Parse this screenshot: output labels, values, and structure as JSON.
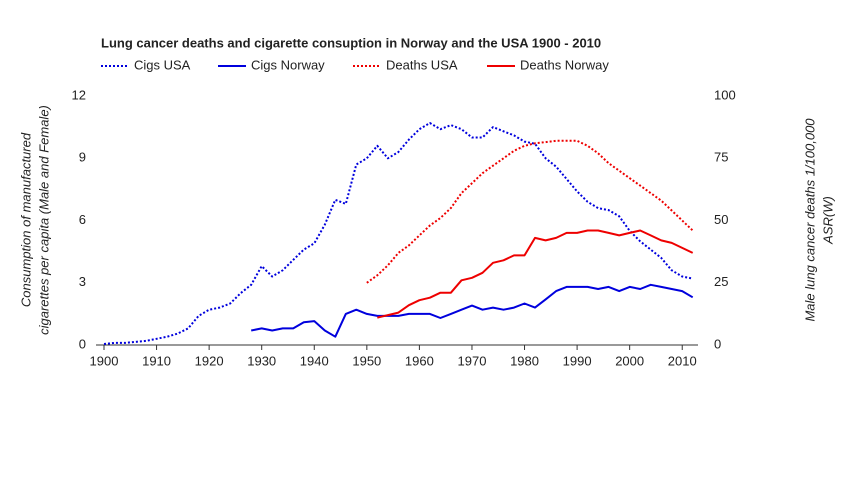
{
  "chart_data": {
    "type": "line",
    "title": "Lung cancer deaths and cigarette consuption in Norway and the USA 1900 - 2010",
    "ylabel": [
      "Consumption of manufactured",
      "cigarettes per capita (Male and Female)"
    ],
    "y2label": [
      "Male lung cancer deaths 1/100,000",
      "ASR(W)"
    ],
    "x": [
      1900,
      1902,
      1904,
      1906,
      1908,
      1910,
      1912,
      1914,
      1916,
      1918,
      1920,
      1922,
      1924,
      1926,
      1928,
      1930,
      1932,
      1934,
      1936,
      1938,
      1940,
      1942,
      1944,
      1946,
      1948,
      1950,
      1952,
      1954,
      1956,
      1958,
      1960,
      1962,
      1964,
      1966,
      1968,
      1970,
      1972,
      1974,
      1976,
      1978,
      1980,
      1982,
      1984,
      1986,
      1988,
      1990,
      1992,
      1994,
      1996,
      1998,
      2000,
      2002,
      2004,
      2006,
      2008,
      2010,
      2012
    ],
    "xlim": [
      1900,
      2013
    ],
    "xticks": [
      1900,
      1910,
      1920,
      1930,
      1940,
      1950,
      1960,
      1970,
      1980,
      1990,
      2000,
      2010
    ],
    "ylim": [
      0,
      12
    ],
    "yticks": [
      0,
      3,
      6,
      9,
      12
    ],
    "y2lim": [
      0,
      100
    ],
    "y2ticks": [
      0,
      25,
      50,
      75,
      100
    ],
    "y_color": "#0000dd",
    "y2_color": "#ee0000",
    "series": [
      {
        "name": "Cigs USA",
        "color": "#0000dd",
        "dotted": true,
        "axis": "y",
        "values": [
          0.05,
          0.1,
          0.1,
          0.15,
          0.2,
          0.3,
          0.4,
          0.55,
          0.8,
          1.4,
          1.7,
          1.8,
          2.0,
          2.5,
          2.9,
          3.8,
          3.3,
          3.6,
          4.1,
          4.6,
          4.9,
          5.8,
          7.0,
          6.8,
          8.7,
          9.0,
          9.6,
          9.0,
          9.3,
          9.9,
          10.4,
          10.7,
          10.4,
          10.6,
          10.4,
          10.0,
          10.0,
          10.5,
          10.3,
          10.1,
          9.8,
          9.7,
          9.0,
          8.6,
          8.0,
          7.4,
          6.9,
          6.6,
          6.5,
          6.2,
          5.5,
          5.0,
          4.6,
          4.2,
          3.6,
          3.3,
          3.2
        ]
      },
      {
        "name": "Cigs Norway",
        "color": "#0000dd",
        "dotted": false,
        "axis": "y",
        "values": [
          null,
          null,
          null,
          null,
          null,
          null,
          null,
          null,
          null,
          null,
          null,
          null,
          null,
          null,
          0.7,
          0.8,
          0.7,
          0.8,
          0.8,
          1.1,
          1.15,
          0.7,
          0.4,
          1.5,
          1.7,
          1.5,
          1.4,
          1.4,
          1.4,
          1.5,
          1.5,
          1.5,
          1.3,
          1.5,
          1.7,
          1.9,
          1.7,
          1.8,
          1.7,
          1.8,
          2.0,
          1.8,
          2.2,
          2.6,
          2.8,
          2.8,
          2.8,
          2.7,
          2.8,
          2.6,
          2.8,
          2.7,
          2.9,
          2.8,
          2.7,
          2.6,
          2.3
        ]
      },
      {
        "name": "Deaths USA",
        "color": "#ee0000",
        "dotted": true,
        "axis": "y2",
        "values": [
          null,
          null,
          null,
          null,
          null,
          null,
          null,
          null,
          null,
          null,
          null,
          null,
          null,
          null,
          null,
          null,
          null,
          null,
          null,
          null,
          null,
          null,
          null,
          null,
          null,
          25,
          28,
          32,
          37,
          40,
          44,
          48,
          51,
          55,
          61,
          65,
          69,
          72,
          75,
          78,
          80,
          81,
          81.5,
          82,
          82,
          82,
          80,
          77,
          73,
          70,
          67,
          64,
          61,
          58,
          54,
          50,
          46
        ]
      },
      {
        "name": "Deaths Norway",
        "color": "#ee0000",
        "dotted": false,
        "axis": "y2",
        "values": [
          null,
          null,
          null,
          null,
          null,
          null,
          null,
          null,
          null,
          null,
          null,
          null,
          null,
          null,
          null,
          null,
          null,
          null,
          null,
          null,
          null,
          null,
          null,
          null,
          null,
          null,
          11,
          12,
          13,
          16,
          18,
          19,
          21,
          21,
          26,
          27,
          29,
          33,
          34,
          36,
          36,
          43,
          42,
          43,
          45,
          45,
          46,
          46,
          45,
          44,
          45,
          46,
          44,
          42,
          41,
          39,
          37
        ]
      }
    ]
  }
}
